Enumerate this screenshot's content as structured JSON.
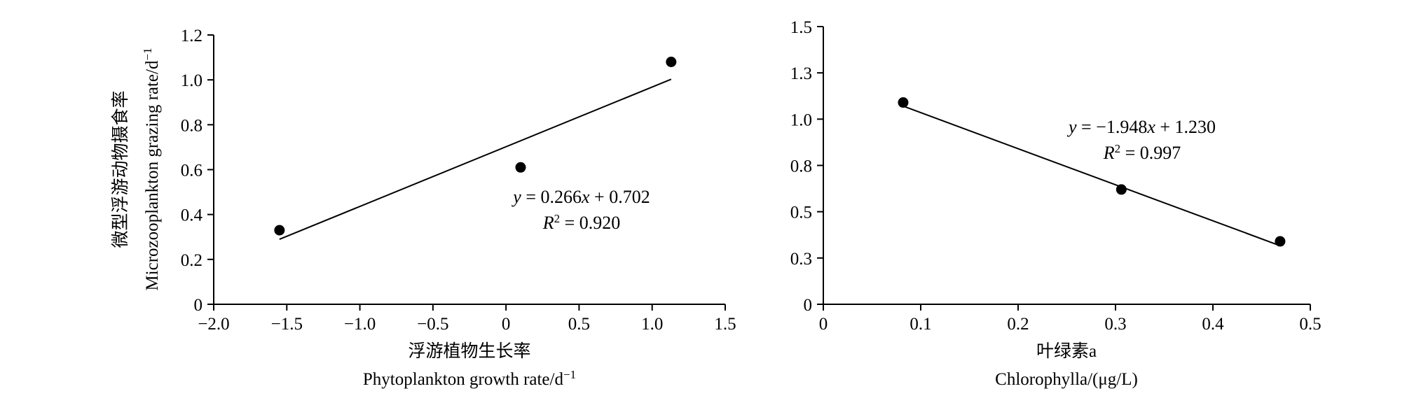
{
  "chart_data": [
    {
      "type": "scatter",
      "title": "",
      "xlabel": "浮游植物生长率",
      "xlabel_en": "Phytoplankton growth rate/d",
      "xlabel_en_sup": "−1",
      "ylabel": "微型浮游动物摄食率",
      "ylabel_en": "Microzooplankton grazing rate/d",
      "ylabel_en_sup": "−1",
      "xlim": [
        -2.0,
        1.5
      ],
      "ylim": [
        0,
        1.2
      ],
      "xticks": [
        -2.0,
        -1.5,
        -1.0,
        -0.5,
        0,
        0.5,
        1.0,
        1.5
      ],
      "xtick_labels": [
        "−2.0",
        "−1.5",
        "−1.0",
        "−0.5",
        "0",
        "0.5",
        "1.0",
        "1.5"
      ],
      "yticks": [
        0,
        0.2,
        0.4,
        0.6,
        0.8,
        1.0,
        1.2
      ],
      "ytick_labels": [
        "0",
        "0.2",
        "0.4",
        "0.6",
        "0.8",
        "1.0",
        "1.2"
      ],
      "grid": false,
      "points": [
        {
          "x": -1.55,
          "y": 0.33
        },
        {
          "x": 0.1,
          "y": 0.61
        },
        {
          "x": 1.13,
          "y": 1.08
        }
      ],
      "trendline": {
        "slope": 0.266,
        "intercept": 0.702,
        "x_range": [
          -1.55,
          1.13
        ]
      },
      "equation": "y = 0.266x + 0.702",
      "r_squared": "R2 = 0.920"
    },
    {
      "type": "scatter",
      "title": "",
      "xlabel": "叶绿素a",
      "xlabel_en": "Chlorophylla/(μg/L)",
      "ylabel": "",
      "xlim": [
        0,
        0.5
      ],
      "ylim": [
        0,
        1.5
      ],
      "xticks": [
        0,
        0.1,
        0.2,
        0.3,
        0.4,
        0.5
      ],
      "xtick_labels": [
        "0",
        "0.1",
        "0.2",
        "0.3",
        "0.4",
        "0.5"
      ],
      "yticks": [
        0,
        0.25,
        0.5,
        0.75,
        1.0,
        1.25,
        1.5
      ],
      "ytick_labels": [
        "0",
        "0.3",
        "0.5",
        "0.8",
        "1.0",
        "1.3",
        "1.5"
      ],
      "grid": false,
      "points": [
        {
          "x": 0.082,
          "y": 1.09
        },
        {
          "x": 0.306,
          "y": 0.62
        },
        {
          "x": 0.469,
          "y": 0.34
        }
      ],
      "trendline": {
        "slope": -1.948,
        "intercept": 1.23,
        "x_range": [
          0.082,
          0.469
        ]
      },
      "equation": "y = −1.948x + 1.230",
      "r_squared": "R2 = 0.997"
    }
  ]
}
